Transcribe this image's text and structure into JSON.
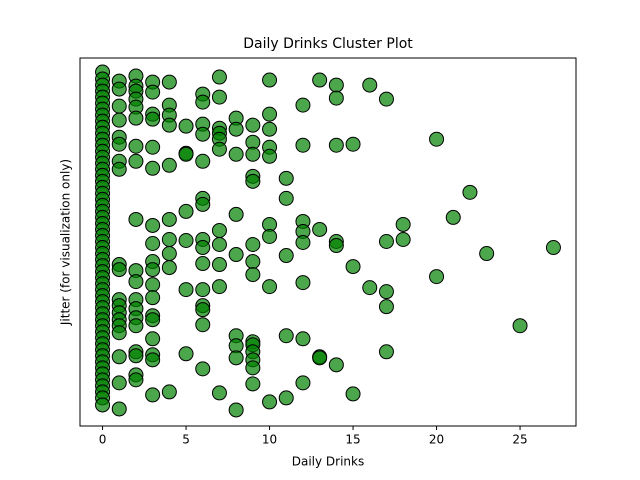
{
  "chart_data": {
    "type": "scatter",
    "title": "Daily Drinks Cluster Plot",
    "x_label": "Daily Drinks",
    "y_label": "Jitter (for visualization only)",
    "color": "#008000",
    "edgecolor": "#000000",
    "xlim": [
      -1.35,
      28.35
    ],
    "xticks": [
      0,
      5,
      10,
      15,
      20,
      25
    ],
    "ylim": [
      0,
      367
    ],
    "x": [
      0,
      0,
      0,
      0,
      0,
      0,
      0,
      0,
      0,
      0,
      0,
      0,
      0,
      0,
      0,
      0,
      0,
      0,
      0,
      0,
      0,
      0,
      0,
      0,
      0,
      0,
      0,
      0,
      0,
      0,
      0,
      0,
      0,
      0,
      0,
      0,
      0,
      0,
      0,
      0,
      0,
      0,
      0,
      0,
      0,
      0,
      0,
      0,
      0,
      0,
      0,
      0,
      0,
      0,
      0,
      0,
      1,
      1,
      1,
      1,
      1,
      1,
      1,
      1,
      1,
      1,
      1,
      1,
      1,
      1,
      1,
      1,
      1,
      1,
      1,
      2,
      2,
      2,
      2,
      2,
      2,
      2,
      2,
      2,
      2,
      2,
      2,
      2,
      2,
      2,
      2,
      2,
      2,
      2,
      3,
      3,
      3,
      3,
      3,
      3,
      3,
      3,
      3,
      3,
      3,
      3,
      3,
      3,
      3,
      3,
      3,
      3,
      4,
      4,
      4,
      4,
      4,
      4,
      4,
      4,
      4,
      4,
      5,
      5,
      5,
      5,
      5,
      5,
      5,
      6,
      6,
      6,
      6,
      6,
      6,
      6,
      6,
      6,
      6,
      6,
      6,
      6,
      6,
      6,
      7,
      7,
      7,
      7,
      7,
      7,
      7,
      7,
      7,
      7,
      7,
      8,
      8,
      8,
      8,
      8,
      8,
      8,
      8,
      8,
      9,
      9,
      9,
      9,
      9,
      9,
      9,
      9,
      9,
      9,
      9,
      9,
      9,
      9,
      10,
      10,
      10,
      10,
      10,
      10,
      10,
      10,
      10,
      11,
      11,
      11,
      11,
      11,
      12,
      12,
      12,
      12,
      12,
      12,
      12,
      12,
      13,
      13,
      13,
      13,
      14,
      14,
      14,
      14,
      14,
      14,
      15,
      15,
      15,
      16,
      16,
      17,
      17,
      17,
      17,
      17,
      18,
      18,
      20,
      20,
      21,
      22,
      23,
      25,
      27
    ],
    "y": [
      353,
      346,
      340,
      334,
      328,
      322,
      316,
      310,
      304,
      298,
      292,
      286,
      280,
      274,
      268,
      262,
      256,
      250,
      244,
      238,
      232,
      226,
      220,
      214,
      208,
      202,
      196,
      190,
      184,
      178,
      172,
      166,
      160,
      154,
      148,
      142,
      136,
      130,
      124,
      118,
      112,
      106,
      100,
      94,
      88,
      82,
      76,
      70,
      64,
      58,
      52,
      46,
      40,
      34,
      28,
      21,
      344,
      336,
      319,
      305,
      288,
      281,
      264,
      256,
      161,
      156,
      126,
      120,
      113,
      106,
      100,
      93,
      69,
      43,
      17,
      349,
      339,
      334,
      326,
      318,
      307,
      279,
      264,
      206,
      155,
      144,
      126,
      117,
      108,
      100,
      74,
      70,
      51,
      46,
      343,
      333,
      311,
      306,
      278,
      257,
      200,
      182,
      164,
      156,
      141,
      128,
      110,
      106,
      87,
      71,
      66,
      31,
      343,
      320,
      310,
      300,
      260,
      206,
      186,
      172,
      158,
      34,
      299,
      272,
      271,
      214,
      185,
      136,
      72,
      331,
      323,
      301,
      291,
      264,
      227,
      221,
      186,
      178,
      162,
      136,
      120,
      116,
      101,
      57,
      348,
      328,
      297,
      292,
      286,
      276,
      195,
      181,
      161,
      139,
      33,
      307,
      296,
      271,
      211,
      171,
      90,
      80,
      68,
      16,
      300,
      283,
      271,
      249,
      244,
      181,
      164,
      151,
      84,
      81,
      74,
      66,
      58,
      42,
      345,
      311,
      296,
      278,
      269,
      201,
      189,
      139,
      24,
      247,
      227,
      170,
      90,
      28,
      320,
      280,
      204,
      194,
      183,
      143,
      87,
      43,
      345,
      196,
      69,
      68,
      340,
      327,
      280,
      184,
      180,
      61,
      281,
      159,
      32,
      340,
      138,
      326,
      184,
      134,
      119,
      74,
      201,
      186,
      286,
      149,
      208,
      233,
      172,
      100,
      178
    ]
  }
}
